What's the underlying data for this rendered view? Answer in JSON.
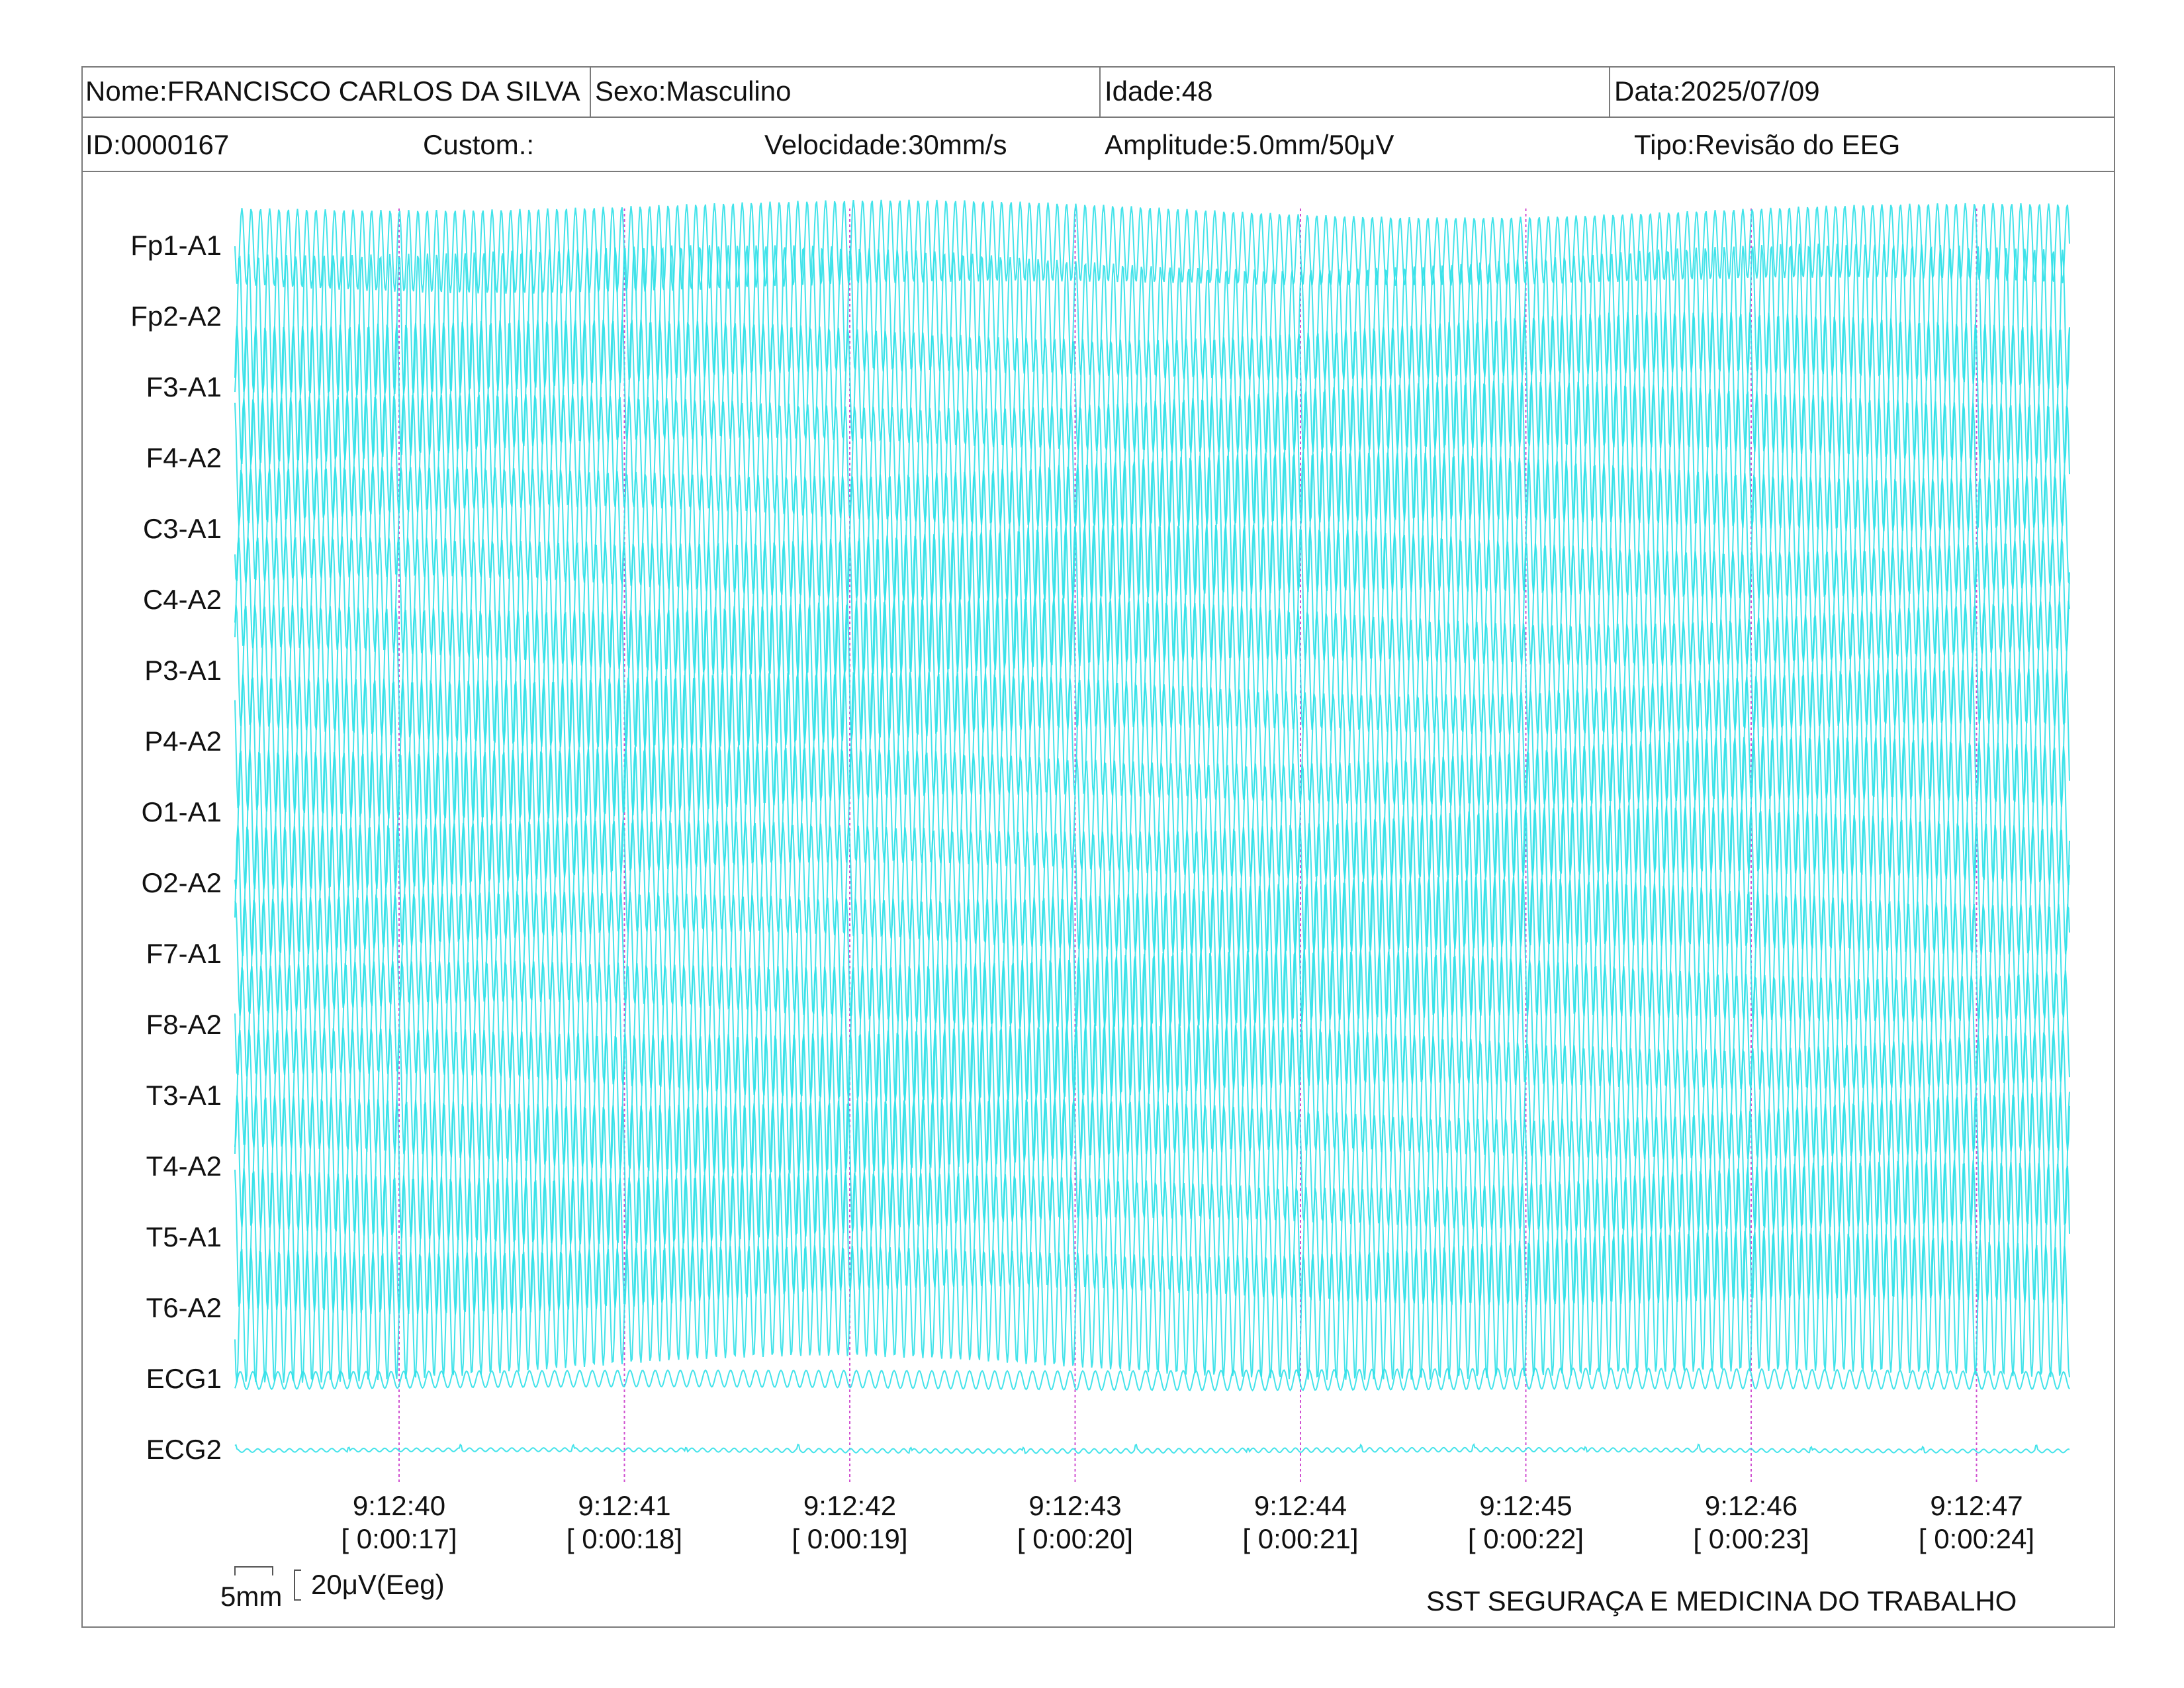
{
  "header": {
    "nome": "Nome:FRANCISCO CARLOS DA SILVA",
    "sexo": "Sexo:Masculino",
    "idade": "Idade:48",
    "data": "Data:2025/07/09",
    "id": "ID:0000167",
    "custom": "Custom.:",
    "velocidade": "Velocidade:30mm/s",
    "amplitude": "Amplitude:5.0mm/50μV",
    "tipo": "Tipo:Revisão do EEG"
  },
  "footer": {
    "scale_time": "5mm",
    "scale_amp": "20μV(Eeg)",
    "clinic": "SST SEGURAÇA E MEDICINA DO TRABALHO"
  },
  "colors": {
    "trace": "#2fe0e8",
    "marker": "#d050d0",
    "border": "#7a7a7a"
  },
  "chart_data": {
    "type": "line",
    "channels": [
      "Fp1-A1",
      "Fp2-A2",
      "F3-A1",
      "F4-A2",
      "C3-A1",
      "C4-A2",
      "P3-A1",
      "P4-A2",
      "O1-A1",
      "O2-A2",
      "F7-A1",
      "F8-A2",
      "T3-A1",
      "T4-A2",
      "T5-A1",
      "T6-A2",
      "ECG1",
      "ECG2"
    ],
    "time_markers": [
      {
        "time": "9:12:40",
        "elapsed": "[ 0:00:17]"
      },
      {
        "time": "9:12:41",
        "elapsed": "[ 0:00:18]"
      },
      {
        "time": "9:12:42",
        "elapsed": "[ 0:00:19]"
      },
      {
        "time": "9:12:43",
        "elapsed": "[ 0:00:20]"
      },
      {
        "time": "9:12:44",
        "elapsed": "[ 0:00:21]"
      },
      {
        "time": "9:12:45",
        "elapsed": "[ 0:00:22]"
      },
      {
        "time": "9:12:46",
        "elapsed": "[ 0:00:23]"
      },
      {
        "time": "9:12:47",
        "elapsed": "[ 0:00:24]"
      }
    ],
    "grid": false
  }
}
